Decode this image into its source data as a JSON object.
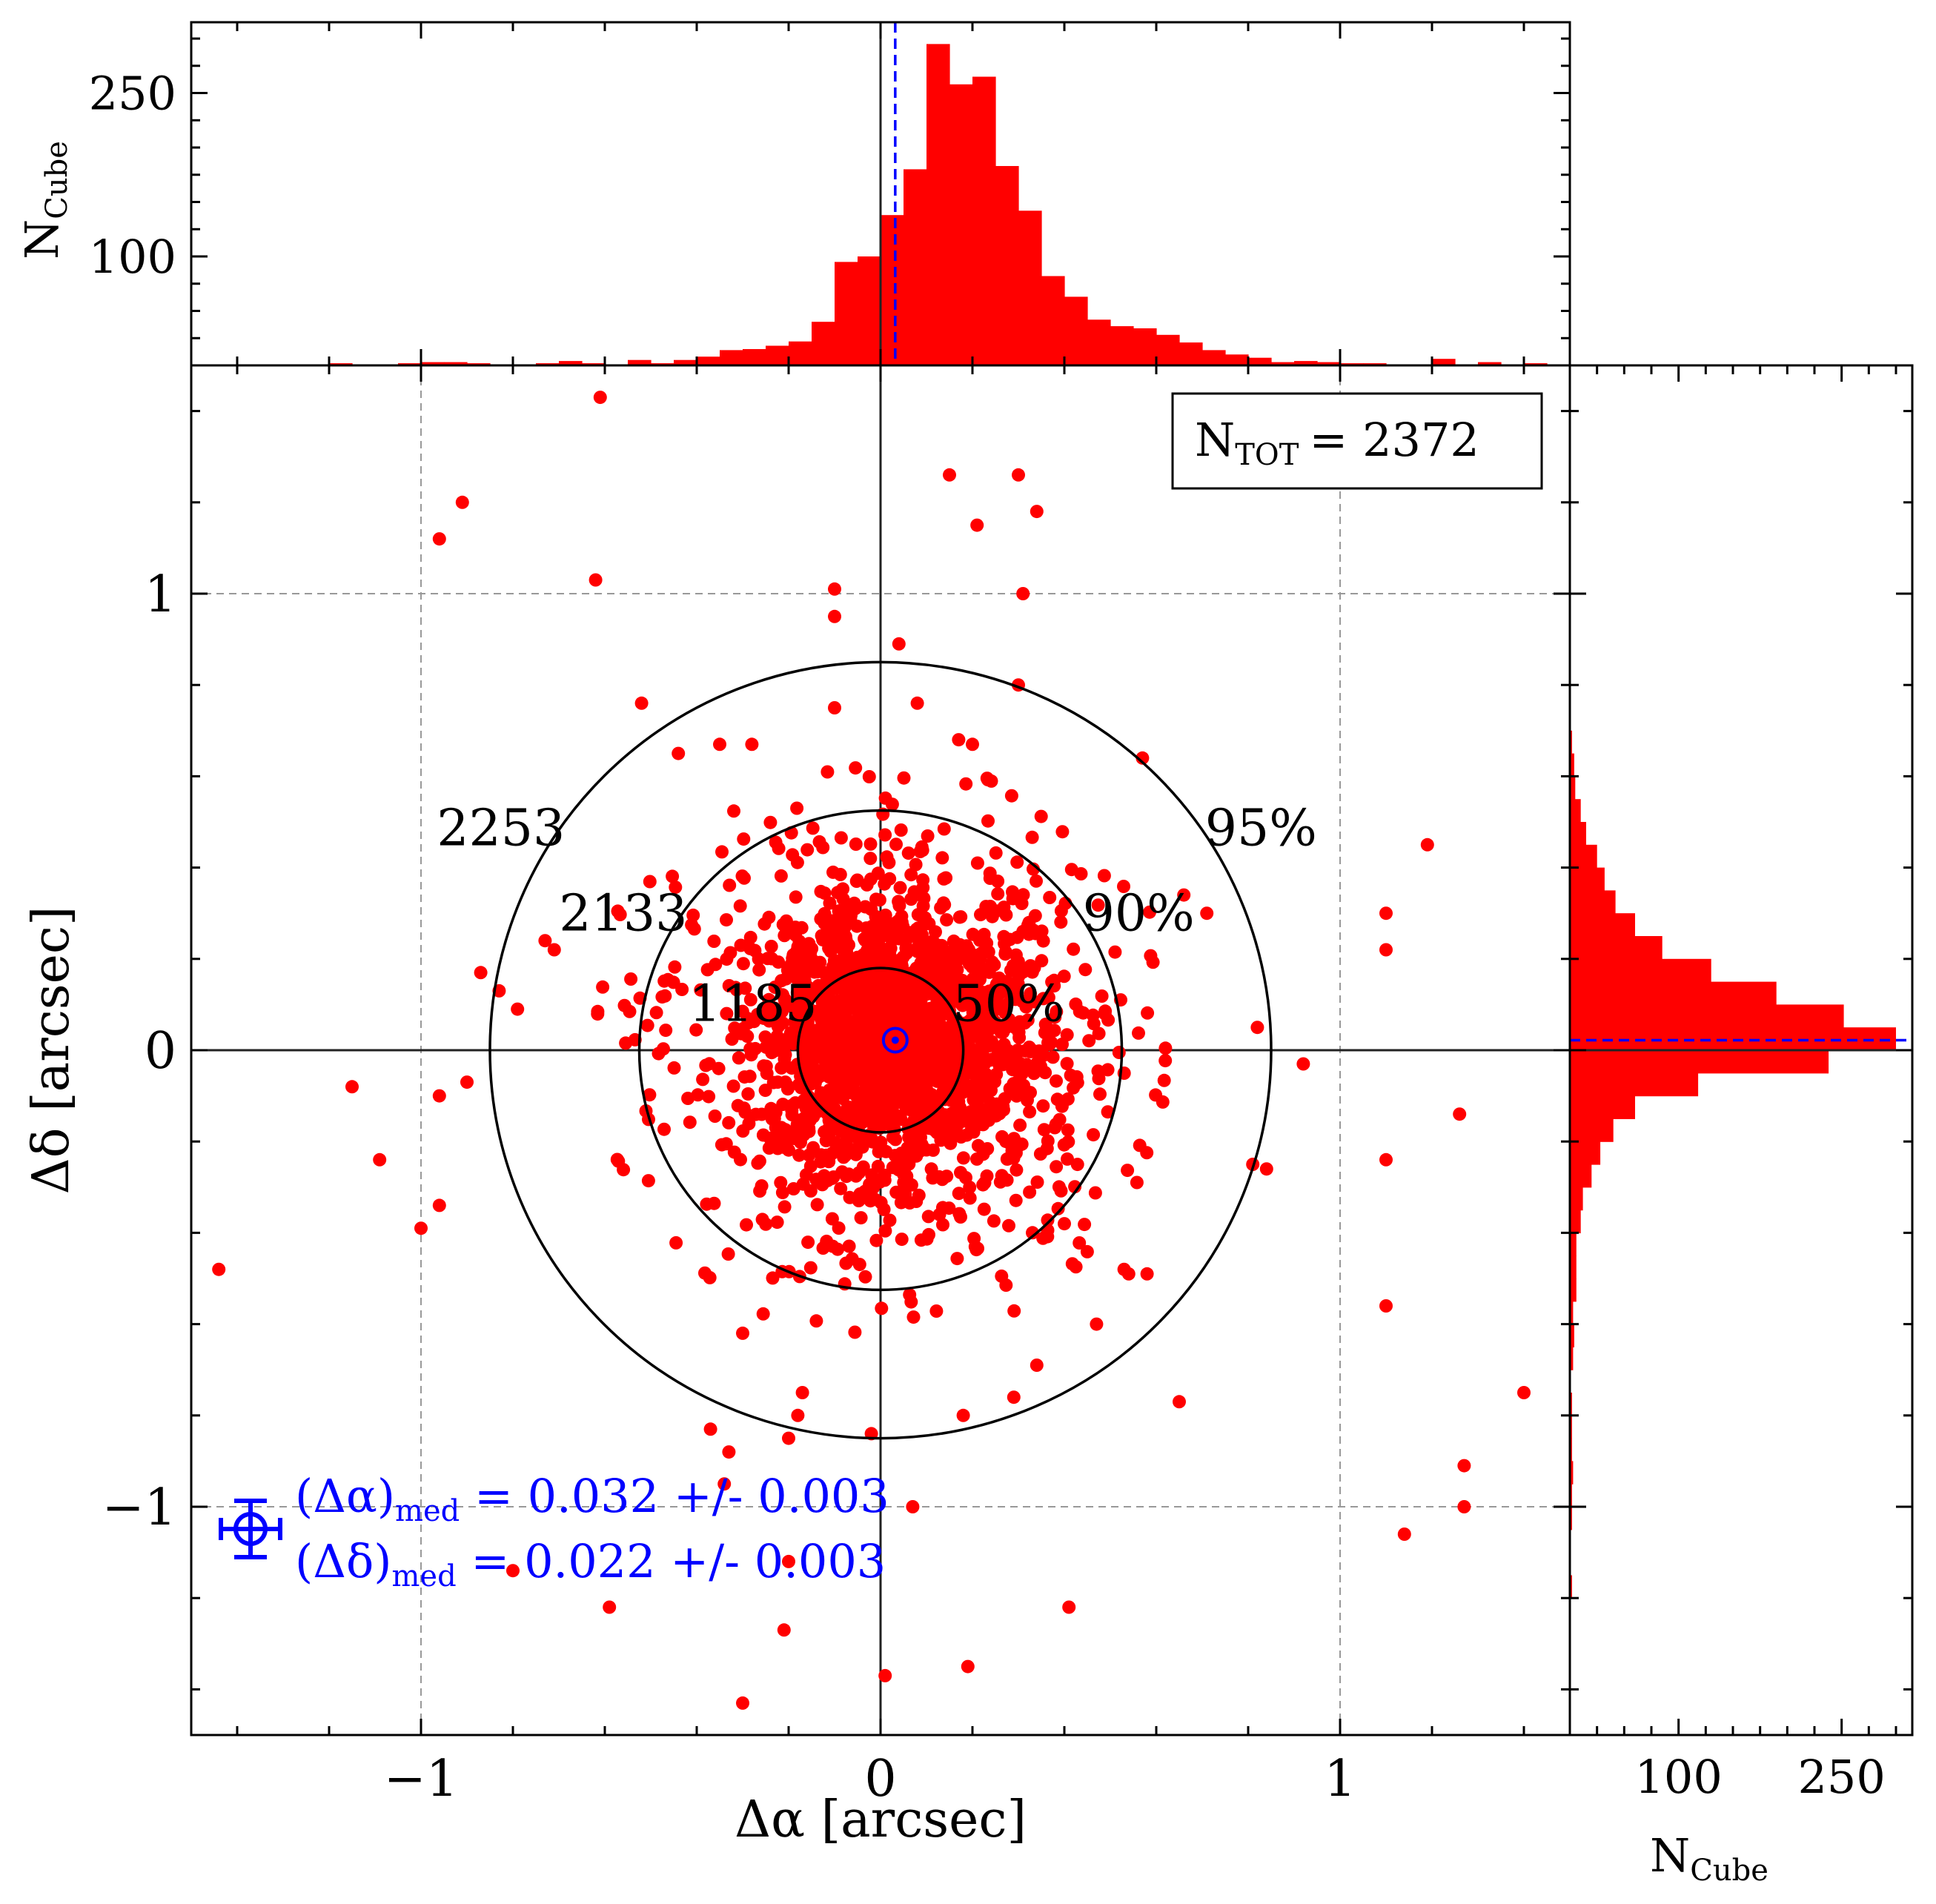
{
  "chart_data": [
    {
      "type": "scatter",
      "panel": "main",
      "xlabel": "Δα [arcsec]",
      "ylabel": "Δδ [arcsec]",
      "xlim": [
        -1.5,
        1.5
      ],
      "ylim": [
        -1.5,
        1.5
      ],
      "xticks": [
        -1,
        0,
        1
      ],
      "yticks": [
        -1,
        0,
        1
      ],
      "xtick_labels": [
        "−1",
        "0",
        "1"
      ],
      "ytick_labels": [
        "−1",
        "0",
        "1"
      ],
      "grid": true,
      "total_label": "N",
      "total_sub": "TOT",
      "total_value": "= 2372",
      "n_points": 2372,
      "circles": [
        {
          "radius": 0.18,
          "percent_label": "50%",
          "count_label": "1185"
        },
        {
          "radius": 0.525,
          "percent_label": "90%",
          "count_label": "2133"
        },
        {
          "radius": 0.85,
          "percent_label": "95%",
          "count_label": "2253"
        }
      ],
      "median": {
        "x": 0.032,
        "y": 0.022,
        "x_err": 0.003,
        "y_err": 0.003
      },
      "median_text": {
        "line1_main": "(Δα)",
        "line1_sub": "med",
        "line1_rest": " = 0.032 +/- 0.003",
        "line2_main": "(Δδ)",
        "line2_sub": "med",
        "line2_rest": " = 0.022 +/- 0.003"
      },
      "outlier_points": [
        [
          -0.61,
          1.43
        ],
        [
          -0.91,
          1.2
        ],
        [
          -0.96,
          1.12
        ],
        [
          -0.62,
          1.03
        ],
        [
          0.15,
          1.26
        ],
        [
          0.3,
          1.26
        ],
        [
          0.34,
          1.18
        ],
        [
          0.21,
          1.15
        ],
        [
          -0.1,
          1.01
        ],
        [
          -0.1,
          0.95
        ],
        [
          0.31,
          1.0
        ],
        [
          0.04,
          0.89
        ],
        [
          -0.52,
          0.76
        ],
        [
          -0.44,
          0.65
        ],
        [
          -0.35,
          0.67
        ],
        [
          -0.28,
          0.67
        ],
        [
          -0.1,
          0.75
        ],
        [
          0.08,
          0.76
        ],
        [
          0.3,
          0.8
        ],
        [
          0.17,
          0.68
        ],
        [
          0.2,
          0.67
        ],
        [
          0.57,
          0.64
        ],
        [
          1.19,
          0.45
        ],
        [
          1.1,
          0.3
        ],
        [
          1.1,
          0.22
        ],
        [
          0.71,
          0.3
        ],
        [
          0.66,
          0.34
        ],
        [
          -0.87,
          0.17
        ],
        [
          -0.83,
          0.13
        ],
        [
          -0.79,
          0.09
        ],
        [
          -0.73,
          0.24
        ],
        [
          -0.71,
          0.22
        ],
        [
          0.82,
          0.05
        ],
        [
          0.92,
          -0.03
        ],
        [
          -1.15,
          -0.08
        ],
        [
          -0.96,
          -0.1
        ],
        [
          -0.9,
          -0.07
        ],
        [
          -1.09,
          -0.24
        ],
        [
          -0.96,
          -0.34
        ],
        [
          -1.0,
          -0.39
        ],
        [
          -1.44,
          -0.48
        ],
        [
          1.1,
          -0.24
        ],
        [
          1.26,
          -0.14
        ],
        [
          0.84,
          -0.26
        ],
        [
          0.81,
          -0.25
        ],
        [
          1.1,
          -0.56
        ],
        [
          1.4,
          -0.75
        ],
        [
          0.65,
          -0.77
        ],
        [
          1.27,
          -0.91
        ],
        [
          1.27,
          -1.0
        ],
        [
          1.14,
          -1.06
        ],
        [
          -0.33,
          -0.88
        ],
        [
          -0.34,
          -0.95
        ],
        [
          0.07,
          -1.0
        ],
        [
          -0.2,
          -1.12
        ],
        [
          -0.8,
          -1.14
        ],
        [
          -0.59,
          -1.22
        ],
        [
          -0.21,
          -1.27
        ],
        [
          0.41,
          -1.22
        ],
        [
          0.01,
          -1.37
        ],
        [
          0.19,
          -1.35
        ],
        [
          -0.3,
          -1.43
        ],
        [
          -0.17,
          -0.75
        ],
        [
          -0.3,
          -0.62
        ],
        [
          0.18,
          -0.8
        ],
        [
          -0.02,
          -0.84
        ],
        [
          -0.37,
          -0.83
        ],
        [
          0.34,
          -0.69
        ],
        [
          0.54,
          -0.49
        ],
        [
          0.58,
          -0.49
        ],
        [
          0.53,
          -0.48
        ],
        [
          0.4,
          -0.38
        ],
        [
          -0.2,
          -0.85
        ],
        [
          0.29,
          -0.76
        ],
        [
          0.47,
          -0.6
        ],
        [
          -0.18,
          -0.8
        ]
      ]
    },
    {
      "type": "bar",
      "panel": "top-histogram",
      "ylabel_main": "N",
      "ylabel_sub": "Cube",
      "yticks": [
        100,
        250
      ],
      "ytick_labels": [
        "100",
        "250"
      ],
      "ylim": [
        0,
        315
      ],
      "bin_width": 0.05,
      "bin_starts": [
        -1.5,
        -1.45,
        -1.4,
        -1.35,
        -1.3,
        -1.25,
        -1.2,
        -1.15,
        -1.1,
        -1.05,
        -1.0,
        -0.95,
        -0.9,
        -0.85,
        -0.8,
        -0.75,
        -0.7,
        -0.65,
        -0.6,
        -0.55,
        -0.5,
        -0.45,
        -0.4,
        -0.35,
        -0.3,
        -0.25,
        -0.2,
        -0.15,
        -0.1,
        -0.05,
        0.0,
        0.05,
        0.1,
        0.15,
        0.2,
        0.25,
        0.3,
        0.35,
        0.4,
        0.45,
        0.5,
        0.55,
        0.6,
        0.65,
        0.7,
        0.75,
        0.8,
        0.85,
        0.9,
        0.95,
        1.0,
        1.05,
        1.1,
        1.15,
        1.2,
        1.25,
        1.3,
        1.35,
        1.4,
        1.45
      ],
      "values": [
        0,
        1,
        0,
        0,
        0,
        1,
        2,
        0,
        1,
        2,
        3,
        3,
        2,
        1,
        1,
        2,
        4,
        2,
        1,
        5,
        2,
        5,
        8,
        14,
        15,
        18,
        22,
        40,
        95,
        100,
        138,
        180,
        295,
        258,
        265,
        183,
        142,
        82,
        63,
        42,
        36,
        34,
        28,
        21,
        14,
        10,
        7,
        3,
        4,
        3,
        2,
        2,
        0,
        1,
        6,
        0,
        3,
        0,
        2,
        0
      ],
      "median_line_x": 0.032
    },
    {
      "type": "bar",
      "orientation": "horizontal",
      "panel": "right-histogram",
      "xlabel_main": "N",
      "xlabel_sub": "Cube",
      "xticks": [
        100,
        250
      ],
      "xtick_labels": [
        "100",
        "250"
      ],
      "xlim": [
        0,
        315
      ],
      "bin_width": 0.05,
      "bin_starts": [
        -1.5,
        -1.45,
        -1.4,
        -1.35,
        -1.3,
        -1.25,
        -1.2,
        -1.15,
        -1.1,
        -1.05,
        -1.0,
        -0.95,
        -0.9,
        -0.85,
        -0.8,
        -0.75,
        -0.7,
        -0.65,
        -0.6,
        -0.55,
        -0.5,
        -0.45,
        -0.4,
        -0.35,
        -0.3,
        -0.25,
        -0.2,
        -0.15,
        -0.1,
        -0.05,
        0.0,
        0.05,
        0.1,
        0.15,
        0.2,
        0.25,
        0.3,
        0.35,
        0.4,
        0.45,
        0.5,
        0.55,
        0.6,
        0.65,
        0.7,
        0.75,
        0.8,
        0.85,
        0.9,
        0.95,
        1.0,
        1.05,
        1.1,
        1.15,
        1.2,
        1.25,
        1.3,
        1.35,
        1.4,
        1.45
      ],
      "values": [
        0,
        1,
        0,
        1,
        0,
        1,
        2,
        0,
        1,
        2,
        2,
        3,
        2,
        2,
        2,
        1,
        3,
        4,
        3,
        6,
        6,
        6,
        10,
        12,
        20,
        28,
        40,
        60,
        118,
        238,
        300,
        252,
        190,
        130,
        85,
        60,
        42,
        32,
        25,
        15,
        10,
        5,
        4,
        2,
        1,
        1,
        1,
        1,
        0,
        0,
        0,
        0,
        0,
        0,
        0,
        0,
        0,
        0,
        0,
        0
      ],
      "median_line_y": 0.022
    }
  ]
}
